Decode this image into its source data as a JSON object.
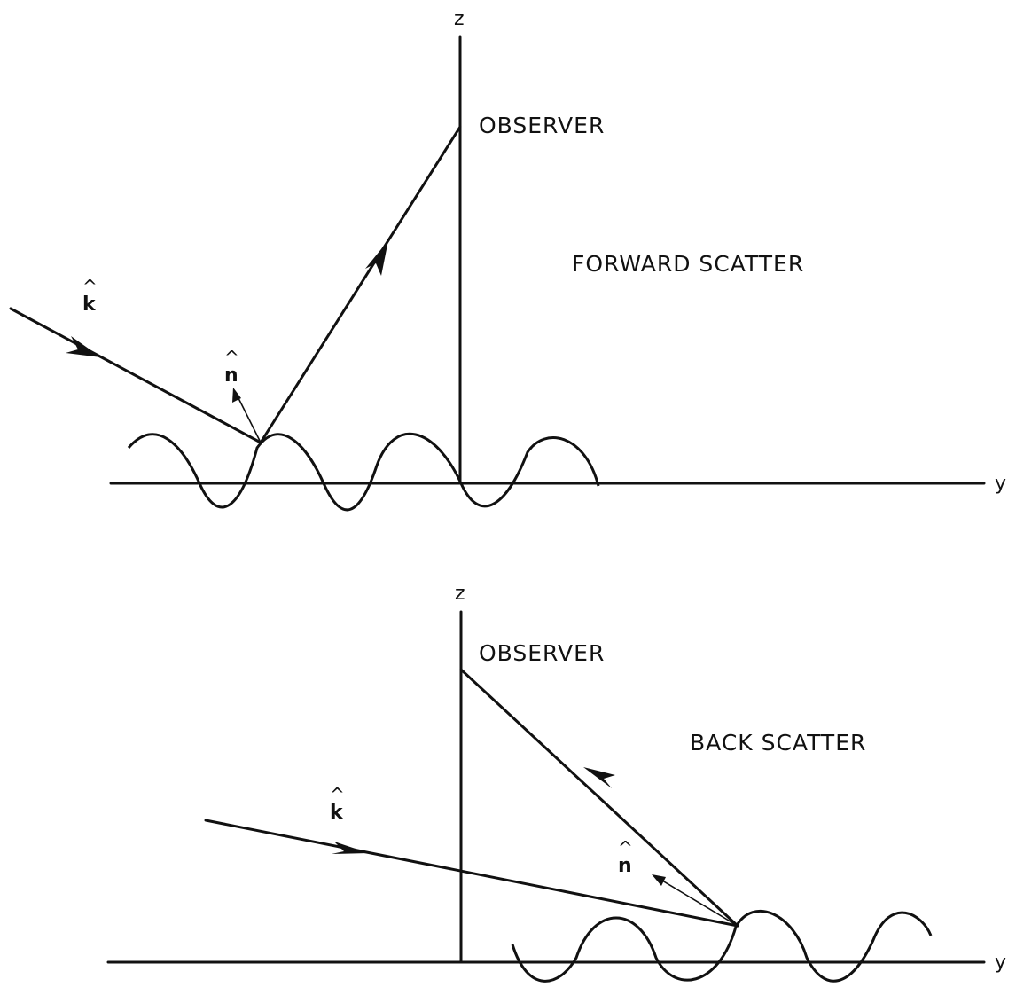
{
  "top_panel": {
    "z_axis_label": "z",
    "y_axis_label": "y",
    "observer_label": "OBSERVER",
    "scatter_label": "FORWARD SCATTER",
    "incident_vector_symbol": "k",
    "normal_vector_symbol": "n",
    "hat_symbol": "^"
  },
  "bottom_panel": {
    "z_axis_label": "z",
    "y_axis_label": "y",
    "observer_label": "OBSERVER",
    "scatter_label": "BACK SCATTER",
    "incident_vector_symbol": "k",
    "normal_vector_symbol": "n",
    "hat_symbol": "^"
  }
}
